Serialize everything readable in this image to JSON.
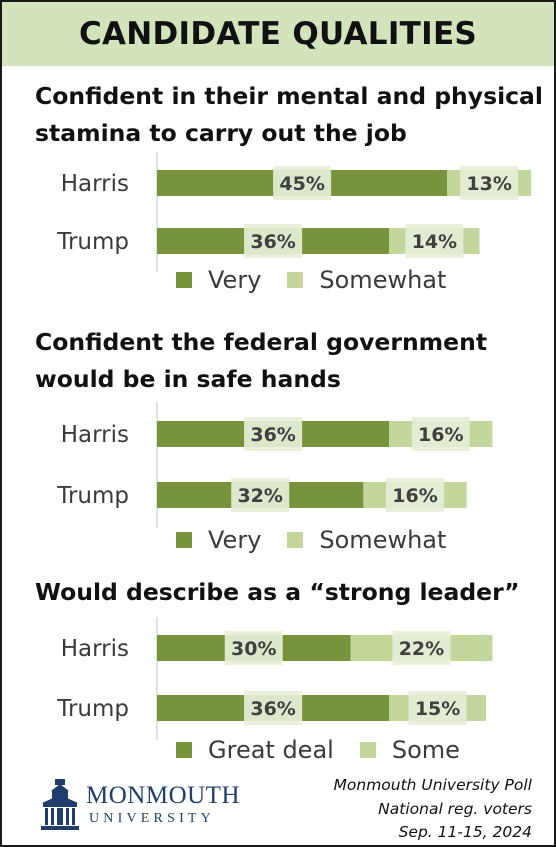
{
  "banner": {
    "title": "CANDIDATE QUALITIES"
  },
  "colors": {
    "very": "#77933c",
    "somewhat": "#c3d69b",
    "label_bg": "#e6eed8",
    "axis": "#d9d9d9",
    "banner": "#d3e4bd"
  },
  "chart_data": [
    {
      "type": "bar",
      "title": "Confident in their mental and physical stamina to carry out the job",
      "categories": [
        "Harris",
        "Trump"
      ],
      "series": [
        {
          "name": "Very",
          "values": [
            45,
            36
          ]
        },
        {
          "name": "Somewhat",
          "values": [
            13,
            14
          ]
        }
      ],
      "legend": "bottom"
    },
    {
      "type": "bar",
      "title": "Confident the federal government would be in safe hands",
      "categories": [
        "Harris",
        "Trump"
      ],
      "series": [
        {
          "name": "Very",
          "values": [
            36,
            32
          ]
        },
        {
          "name": "Somewhat",
          "values": [
            16,
            16
          ]
        }
      ],
      "legend": "bottom"
    },
    {
      "type": "bar",
      "title": "Would describe as a “strong leader”",
      "categories": [
        "Harris",
        "Trump"
      ],
      "series": [
        {
          "name": "Great deal",
          "values": [
            30,
            36
          ]
        },
        {
          "name": "Some",
          "values": [
            22,
            15
          ]
        }
      ],
      "legend": "bottom"
    }
  ],
  "logo": {
    "name": "MONMOUTH",
    "sub": "UNIVERSITY"
  },
  "source": {
    "line1": "Monmouth University Poll",
    "line2": "National reg. voters",
    "line3": "Sep. 11-15, 2024"
  }
}
